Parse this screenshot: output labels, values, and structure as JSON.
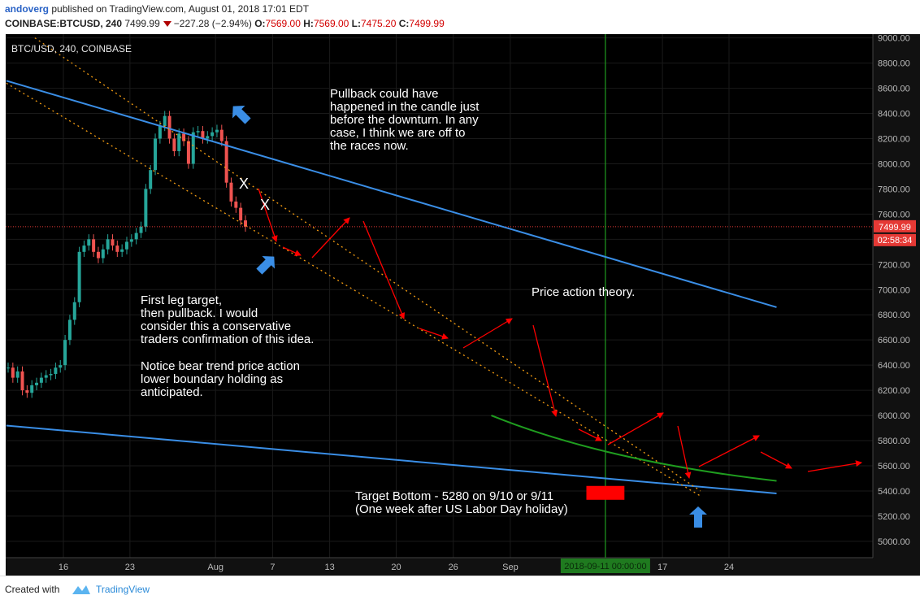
{
  "header": {
    "author": "andoverg",
    "published": "published on TradingView.com, August 01, 2018 17:01 EDT",
    "symbol_line": "COINBASE:BTCUSD, 240",
    "last": "7499.99",
    "change": "−227.28 (−2.94%)",
    "o_label": "O:",
    "o_val": "7569.00",
    "h_label": "H:",
    "h_val": "7569.00",
    "l_label": "L:",
    "l_val": "7475.20",
    "c_label": "C:",
    "c_val": "7499.99"
  },
  "chart_data": {
    "type": "line",
    "title": "BTC/USD, 240, COINBASE",
    "y_ticks": [
      "9000.00",
      "8800.00",
      "8600.00",
      "8400.00",
      "8200.00",
      "8000.00",
      "7800.00",
      "7600.00",
      "7400.00",
      "7200.00",
      "7000.00",
      "6800.00",
      "6600.00",
      "6400.00",
      "6200.00",
      "6000.00",
      "5800.00",
      "5600.00",
      "5400.00",
      "5200.00",
      "5000.00"
    ],
    "ylim": [
      4870,
      9030
    ],
    "x_ticks": [
      {
        "label": "16",
        "date": "2018-07-16"
      },
      {
        "label": "23",
        "date": "2018-07-23"
      },
      {
        "label": "Aug",
        "date": "2018-08-01"
      },
      {
        "label": "7",
        "date": "2018-08-07"
      },
      {
        "label": "13",
        "date": "2018-08-13"
      },
      {
        "label": "20",
        "date": "2018-08-20"
      },
      {
        "label": "26",
        "date": "2018-08-26"
      },
      {
        "label": "Sep",
        "date": "2018-09-01"
      },
      {
        "label": "17",
        "date": "2018-09-17"
      },
      {
        "label": "24",
        "date": "2018-09-24"
      }
    ],
    "price_label": "7499.99",
    "countdown_label": "02:58:34",
    "cursor_label": "2018-09-11 00:00:00",
    "candles_close": [
      6380,
      6300,
      6350,
      6200,
      6180,
      6240,
      6260,
      6300,
      6320,
      6330,
      6380,
      6400,
      6600,
      6760,
      6900,
      7300,
      7350,
      7400,
      7300,
      7250,
      7320,
      7400,
      7350,
      7300,
      7320,
      7380,
      7400,
      7450,
      7500,
      7800,
      7950,
      8200,
      8300,
      8380,
      8200,
      8100,
      8240,
      8180,
      8000,
      8250,
      8260,
      8200,
      8220,
      8250,
      8270,
      8180,
      7850,
      7700,
      7650,
      7550,
      7500
    ],
    "series": [
      {
        "name": "",
        "x": [
          "2018-07-10",
          "2018-09-29"
        ],
        "values": [
          8660,
          6860
        ]
      },
      {
        "name": "",
        "x": [
          "2018-07-10",
          "2018-09-29"
        ],
        "values": [
          5920,
          5380
        ]
      }
    ],
    "channel_upper": {
      "x": [
        "2018-07-13",
        "2018-09-21"
      ],
      "values": [
        9000,
        5400
      ]
    },
    "channel_lower": {
      "x": [
        "2018-07-10",
        "2018-09-21"
      ],
      "values": [
        8640,
        5360
      ]
    },
    "projection_curve": {
      "x": [
        "2018-08-30",
        "2018-09-11",
        "2018-09-29"
      ],
      "values": [
        6000,
        5700,
        5480
      ]
    },
    "target_box": {
      "x": [
        "2018-09-09",
        "2018-09-13"
      ],
      "values": [
        5330,
        5440
      ]
    },
    "annotations": [
      "Pullback could have happened in the candle just before the downturn. In any case, I think we are off to the races now.",
      "First leg target, then pullback. I would consider this a conservative traders confirmation of this idea.",
      "Notice bear trend price action lower boundary holding as anticipated.",
      "Price action theory.",
      "Target Bottom - 5280 on 9/10 or 9/11 (One week after US Labor Day holiday)"
    ],
    "marks": [
      "X",
      "X"
    ],
    "grid": true,
    "legend": "none"
  },
  "notes": {
    "pullback": [
      "Pullback could have",
      "happened in the candle just",
      "before the downturn. In any",
      "case, I think we are off to",
      "the races now."
    ],
    "first_leg": [
      "First leg target,",
      "then pullback. I would",
      "consider this a conservative",
      "traders confirmation of this idea."
    ],
    "bear": [
      "Notice bear trend price action",
      "lower boundary holding as",
      "anticipated."
    ],
    "theory": "Price action theory.",
    "target": [
      "Target Bottom - 5280 on 9/10 or 9/11",
      "(One week after US Labor Day holiday)"
    ],
    "x1": "X",
    "x2": "X"
  },
  "colors": {
    "background": "#000000",
    "trendline": "#3a8ee6",
    "channel": "#f39c12",
    "arrow": "#ff0000",
    "curve": "#1f9d1f",
    "up_candle": "#26a69a",
    "down_candle": "#ef5350",
    "price_tag": "#e53935"
  },
  "footer": {
    "created": "Created with",
    "brand": "TradingView"
  }
}
